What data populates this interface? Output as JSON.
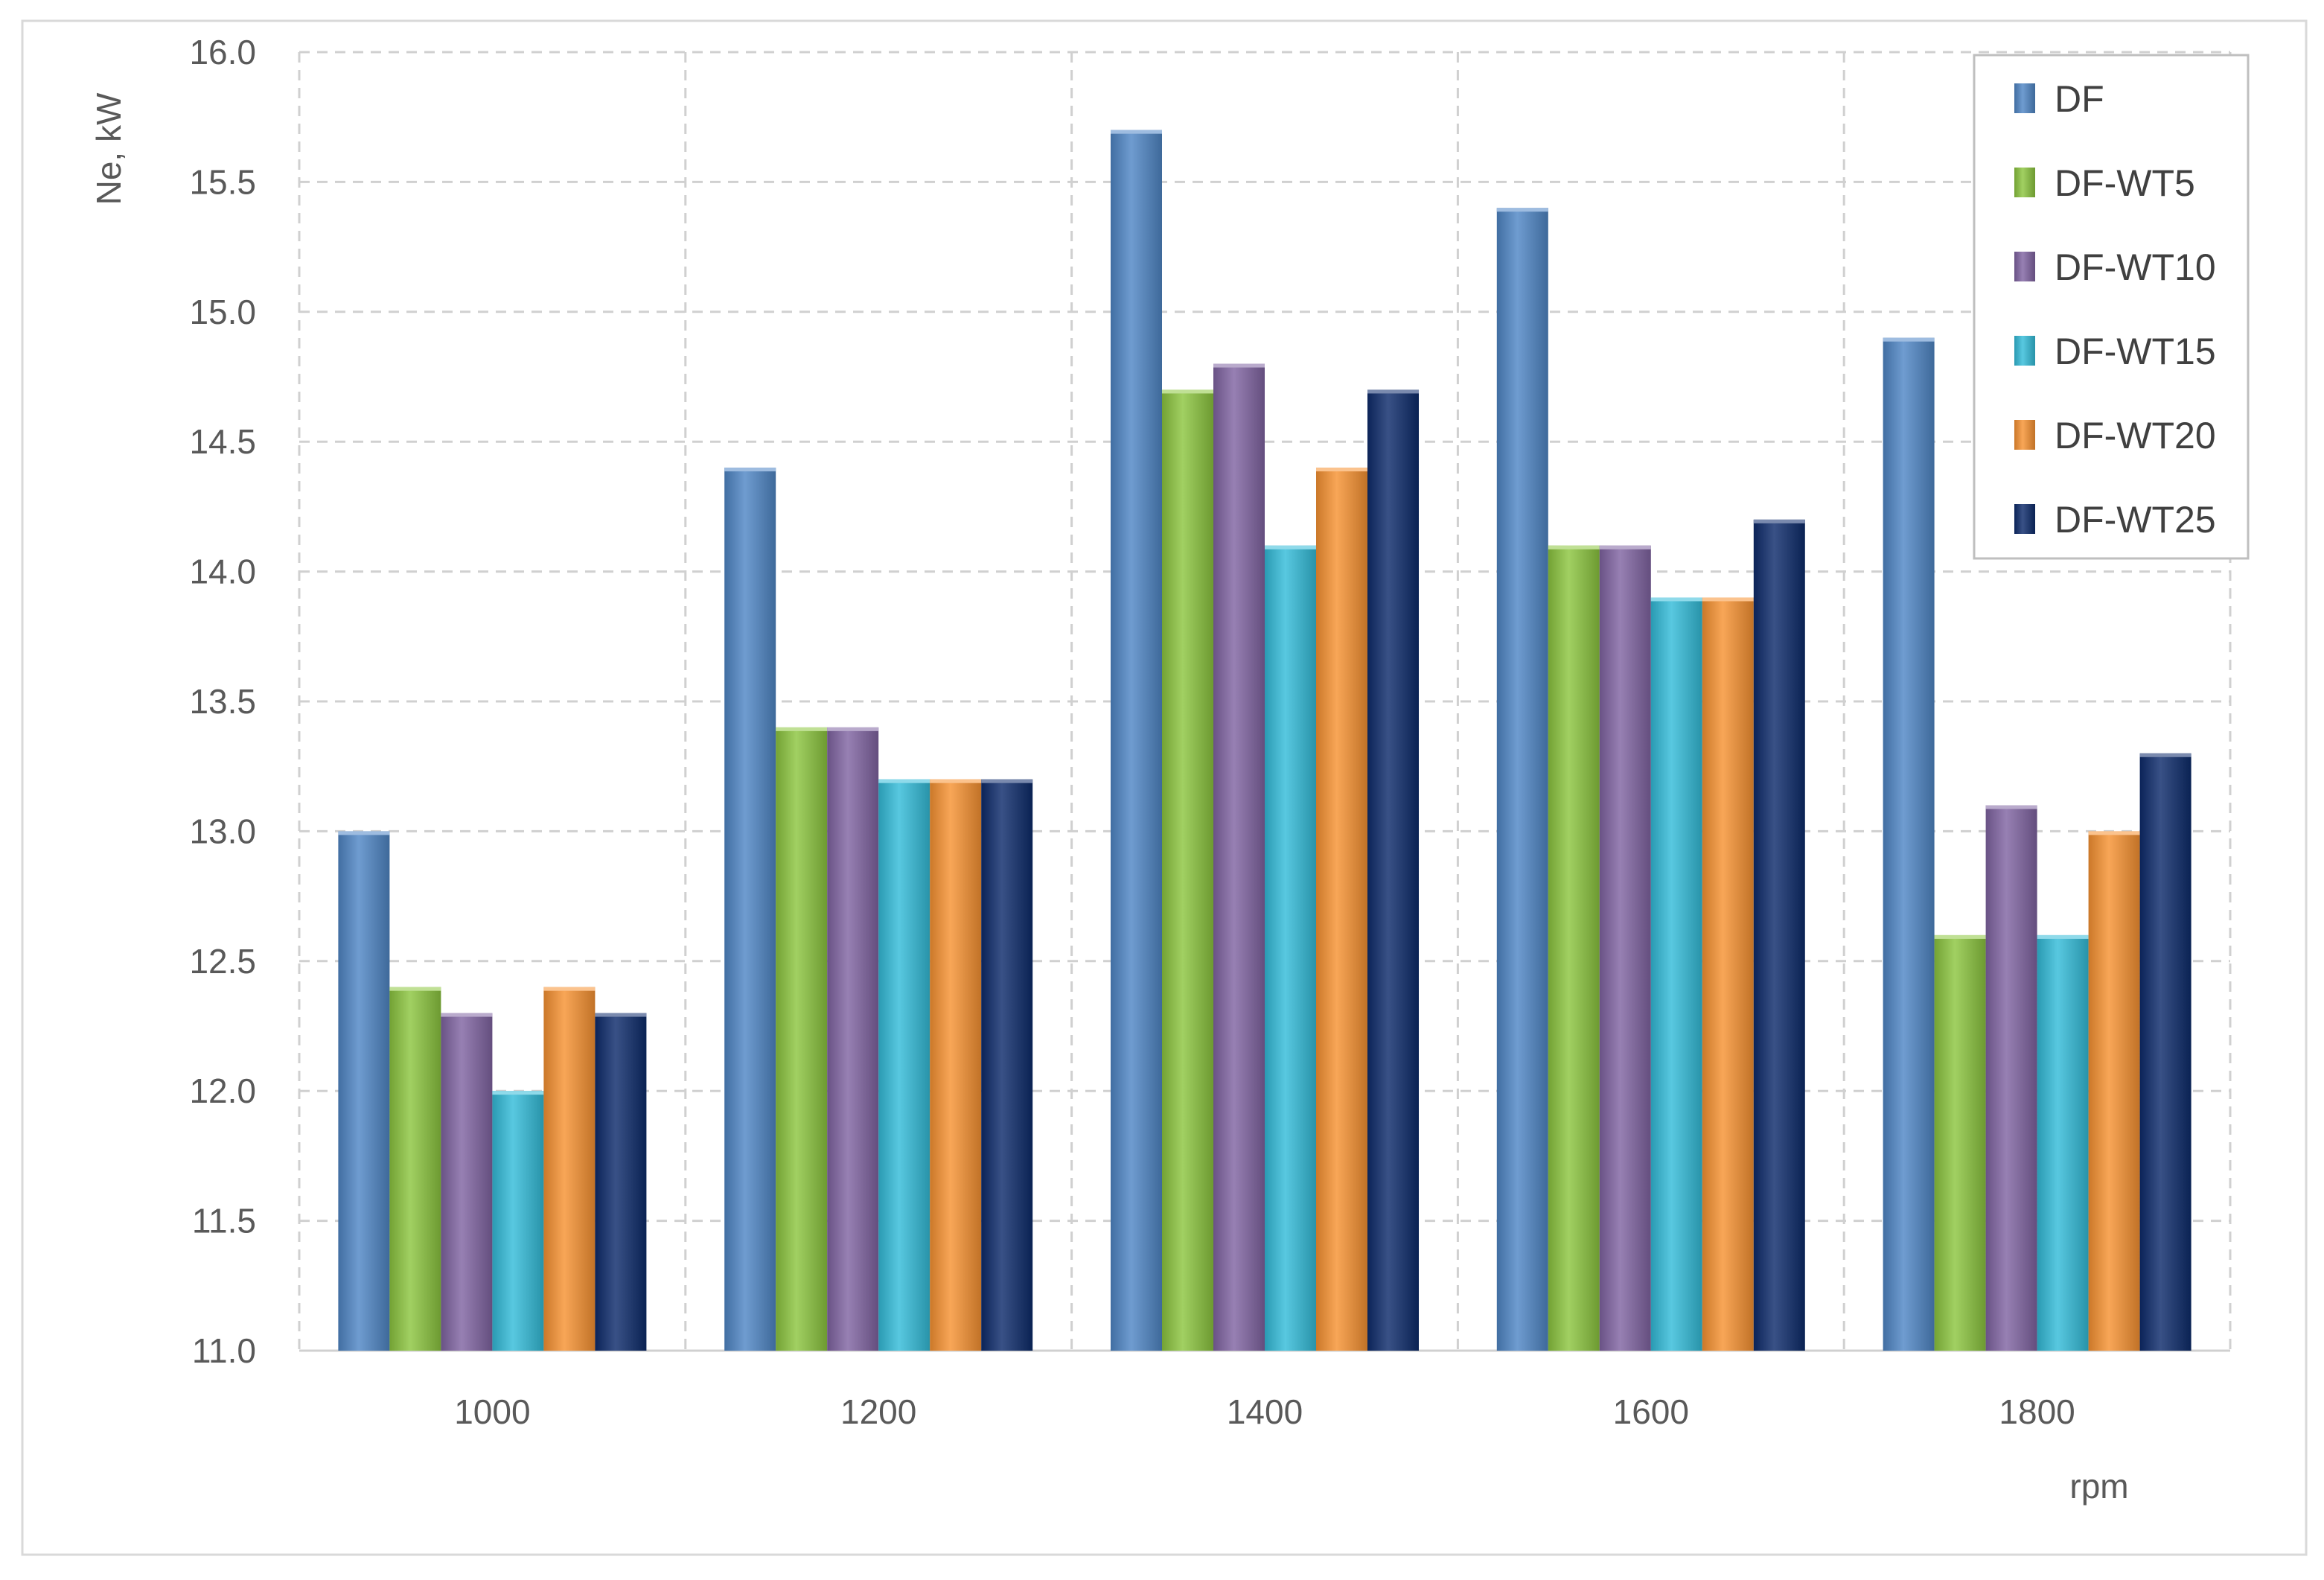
{
  "chart_data": {
    "type": "bar",
    "categories": [
      "1000",
      "1200",
      "1400",
      "1600",
      "1800"
    ],
    "series": [
      {
        "name": "DF",
        "values": [
          13.0,
          14.4,
          15.7,
          15.4,
          14.9
        ]
      },
      {
        "name": "DF-WT5",
        "values": [
          12.4,
          13.4,
          14.7,
          14.1,
          12.6
        ]
      },
      {
        "name": "DF-WT10",
        "values": [
          12.3,
          13.4,
          14.8,
          14.1,
          13.1
        ]
      },
      {
        "name": "DF-WT15",
        "values": [
          12.0,
          13.2,
          14.1,
          13.9,
          12.6
        ]
      },
      {
        "name": "DF-WT20",
        "values": [
          12.4,
          13.2,
          14.4,
          13.9,
          13.0
        ]
      },
      {
        "name": "DF-WT25",
        "values": [
          12.3,
          13.2,
          14.7,
          14.2,
          13.3
        ]
      }
    ],
    "colors": [
      "#4f86c6",
      "#8cc63f",
      "#8064a2",
      "#33bcd9",
      "#f79232",
      "#0d2b6b"
    ],
    "title": "",
    "xlabel": "rpm",
    "ylabel": "Ne, kW",
    "ylim": [
      11.0,
      16.0
    ],
    "yticks": [
      "11.0",
      "11.5",
      "12.0",
      "12.5",
      "13.0",
      "13.5",
      "14.0",
      "14.5",
      "15.0",
      "15.5",
      "16.0"
    ],
    "grid": true,
    "legend_position": "top-right"
  }
}
